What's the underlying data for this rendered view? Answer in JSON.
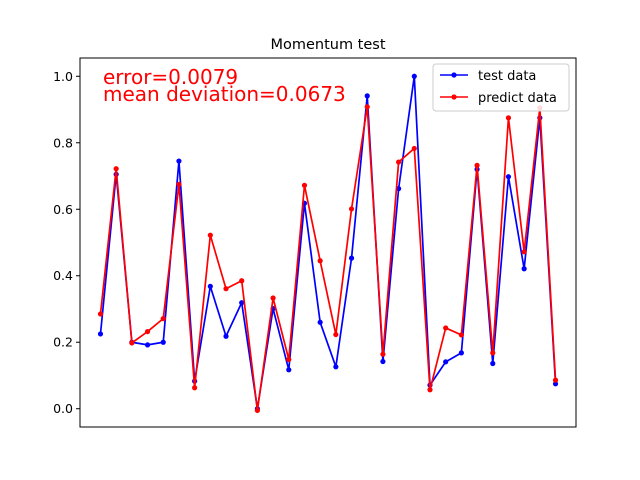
{
  "chart_data": {
    "type": "line",
    "title": "Momentum test",
    "xlabel": "",
    "ylabel": "",
    "x_ticks_visible": false,
    "ylim": [
      -0.055,
      1.055
    ],
    "y_ticks": [
      "0.0",
      "0.2",
      "0.4",
      "0.6",
      "0.8",
      "1.0"
    ],
    "y_tick_values": [
      0.0,
      0.2,
      0.4,
      0.6,
      0.8,
      1.0
    ],
    "grid": false,
    "legend_position": "top-right",
    "annotations": {
      "error": "error=0.0079",
      "mean_deviation": "mean deviation=0.0673",
      "color": "#ff0000"
    },
    "x": [
      0,
      1,
      2,
      3,
      4,
      5,
      6,
      7,
      8,
      9,
      10,
      11,
      12,
      13,
      14,
      15,
      16,
      17,
      18,
      19,
      20,
      21,
      22,
      23,
      24,
      25,
      26,
      27,
      28,
      29
    ],
    "series": [
      {
        "name": "test data",
        "color": "#0000ff",
        "values": [
          0.225,
          0.705,
          0.2,
          0.192,
          0.2,
          0.745,
          0.083,
          0.368,
          0.218,
          0.319,
          0.0,
          0.301,
          0.117,
          0.618,
          0.26,
          0.126,
          0.453,
          0.941,
          0.142,
          0.662,
          1.0,
          0.071,
          0.141,
          0.168,
          0.72,
          0.136,
          0.698,
          0.421,
          0.875,
          0.075
        ]
      },
      {
        "name": "predict data",
        "color": "#ff0000",
        "values": [
          0.285,
          0.722,
          0.198,
          0.232,
          0.271,
          0.675,
          0.063,
          0.522,
          0.361,
          0.385,
          -0.005,
          0.333,
          0.148,
          0.672,
          0.445,
          0.223,
          0.601,
          0.908,
          0.164,
          0.742,
          0.783,
          0.057,
          0.243,
          0.222,
          0.732,
          0.168,
          0.875,
          0.472,
          0.905,
          0.086
        ]
      }
    ]
  }
}
